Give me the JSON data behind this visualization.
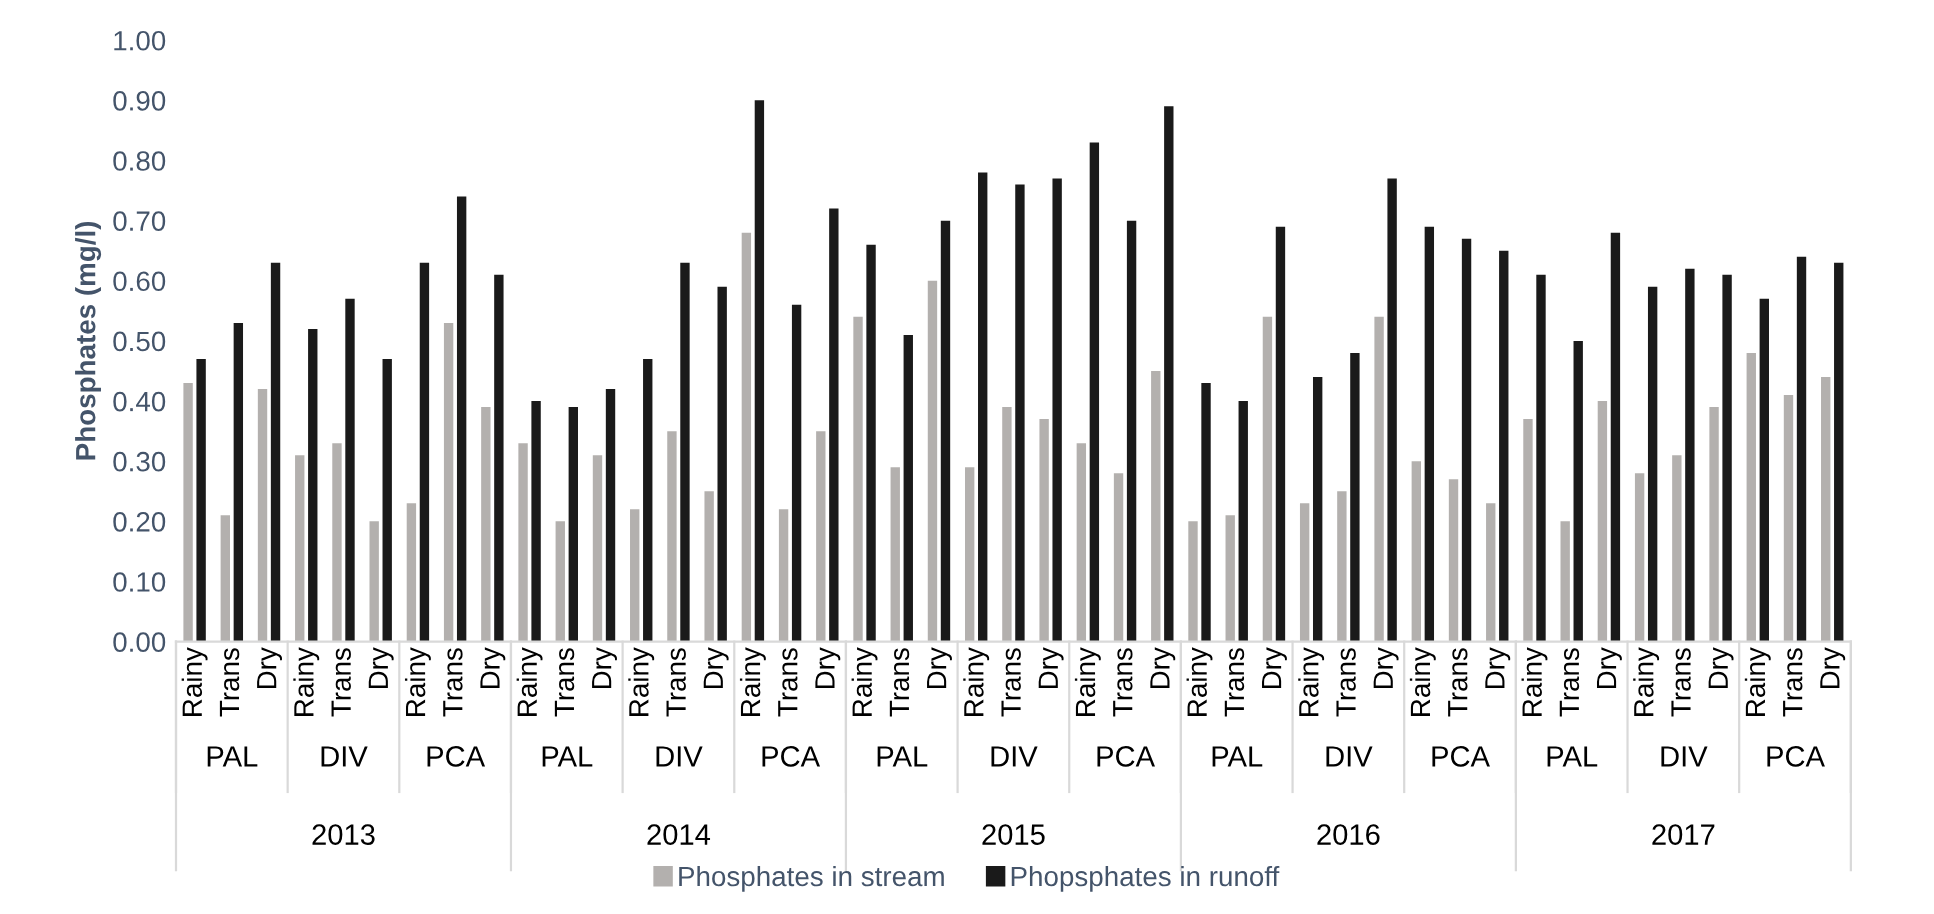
{
  "chart_data": {
    "type": "bar",
    "ylabel": "Phosphates (mg/l)",
    "categories": [
      "Rainy",
      "Trans",
      "Dry",
      "Rainy",
      "Trans",
      "Dry",
      "Rainy",
      "Trans",
      "Dry",
      "Rainy",
      "Trans",
      "Dry",
      "Rainy",
      "Trans",
      "Dry",
      "Rainy",
      "Trans",
      "Dry",
      "Rainy",
      "Trans",
      "Dry",
      "Rainy",
      "Trans",
      "Dry",
      "Rainy",
      "Trans",
      "Dry",
      "Rainy",
      "Trans",
      "Dry",
      "Rainy",
      "Trans",
      "Dry",
      "Rainy",
      "Trans",
      "Dry",
      "Rainy",
      "Trans",
      "Dry",
      "Rainy",
      "Trans",
      "Dry",
      "Rainy",
      "Trans",
      "Dry"
    ],
    "annotations": [
      "PAL",
      "DIV",
      "PCA",
      "PAL",
      "DIV",
      "PCA",
      "PAL",
      "DIV",
      "PCA",
      "PAL",
      "DIV",
      "PCA",
      "PAL",
      "DIV",
      "PCA",
      "2013",
      "2014",
      "2015",
      "2016",
      "2017"
    ],
    "series": [
      {
        "name": "Phosphates in stream",
        "color": "#b3b0ae",
        "values": [
          0.43,
          0.21,
          0.42,
          0.31,
          0.33,
          0.2,
          0.23,
          0.53,
          0.39,
          0.33,
          0.2,
          0.31,
          0.22,
          0.35,
          0.25,
          0.68,
          0.22,
          0.35,
          0.54,
          0.29,
          0.6,
          0.29,
          0.39,
          0.37,
          0.33,
          0.28,
          0.45,
          0.2,
          0.21,
          0.54,
          0.23,
          0.25,
          0.54,
          0.3,
          0.27,
          0.23,
          0.37,
          0.2,
          0.4,
          0.28,
          0.31,
          0.39,
          0.48,
          0.41,
          0.44
        ]
      },
      {
        "name": "Phopsphates in runoff",
        "color": "#1a1a1a",
        "values": [
          0.47,
          0.53,
          0.63,
          0.52,
          0.57,
          0.47,
          0.63,
          0.74,
          0.61,
          0.4,
          0.39,
          0.42,
          0.47,
          0.63,
          0.59,
          0.9,
          0.56,
          0.72,
          0.66,
          0.51,
          0.7,
          0.78,
          0.76,
          0.77,
          0.83,
          0.7,
          0.89,
          0.43,
          0.4,
          0.69,
          0.44,
          0.48,
          0.77,
          0.69,
          0.67,
          0.65,
          0.61,
          0.5,
          0.68,
          0.59,
          0.62,
          0.61,
          0.57,
          0.64,
          0.63
        ]
      }
    ],
    "ylim": [
      0,
      1
    ],
    "yticks": [
      {
        "value": 0,
        "label": "0.00"
      },
      {
        "value": 0.1,
        "label": "0.10"
      },
      {
        "value": 0.2,
        "label": "0.20"
      },
      {
        "value": 0.3,
        "label": "0.30"
      },
      {
        "value": 0.4,
        "label": "0.40"
      },
      {
        "value": 0.5,
        "label": "0.50"
      },
      {
        "value": 0.6,
        "label": "0.60"
      },
      {
        "value": 0.7,
        "label": "0.70"
      },
      {
        "value": 0.8,
        "label": "0.80"
      },
      {
        "value": 0.9,
        "label": "0.90"
      },
      {
        "value": 1,
        "label": "1.00"
      }
    ],
    "legend": "bottom",
    "grid": false
  }
}
